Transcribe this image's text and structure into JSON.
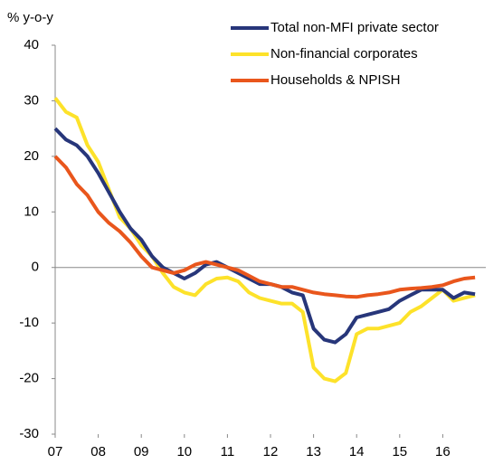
{
  "chart_data": {
    "type": "line",
    "y_label": "% y-o-y",
    "x": [
      2007,
      2007.25,
      2007.5,
      2007.75,
      2008,
      2008.25,
      2008.5,
      2008.75,
      2009,
      2009.25,
      2009.5,
      2009.75,
      2010,
      2010.25,
      2010.5,
      2010.75,
      2011,
      2011.25,
      2011.5,
      2011.75,
      2012,
      2012.25,
      2012.5,
      2012.75,
      2013,
      2013.25,
      2013.5,
      2013.75,
      2014,
      2014.25,
      2014.5,
      2014.75,
      2015,
      2015.25,
      2015.5,
      2015.75,
      2016,
      2016.25,
      2016.5,
      2016.75
    ],
    "series": [
      {
        "name": "Total non-MFI private sector",
        "color": "#27367a",
        "values": [
          25,
          23,
          22,
          20,
          17,
          13.5,
          10,
          7,
          5,
          2,
          0,
          -1,
          -2,
          -1,
          0.5,
          1,
          0,
          -1,
          -2,
          -3,
          -3,
          -3.5,
          -4.5,
          -5,
          -11,
          -13,
          -13.5,
          -12,
          -9,
          -8.5,
          -8,
          -7.5,
          -6,
          -5,
          -4,
          -4,
          -4,
          -5.5,
          -4.5,
          -4.8
        ]
      },
      {
        "name": "Non-financial corporates",
        "color": "#fde22a",
        "values": [
          30.5,
          28,
          27,
          22,
          19,
          14,
          9,
          7,
          4,
          2,
          -1,
          -3.5,
          -4.5,
          -5,
          -3,
          -2,
          -1.8,
          -2.5,
          -4.5,
          -5.5,
          -6,
          -6.5,
          -6.5,
          -8,
          -18,
          -20,
          -20.5,
          -19,
          -12,
          -11,
          -11,
          -10.5,
          -10,
          -8,
          -7,
          -5.5,
          -4,
          -6,
          -5.5,
          -5
        ]
      },
      {
        "name": "Households & NPISH",
        "color": "#e9561c",
        "values": [
          20,
          18,
          15,
          13,
          10,
          8,
          6.5,
          4.5,
          2,
          0,
          -0.5,
          -1,
          -0.5,
          0.5,
          1,
          0.5,
          0,
          -0.5,
          -1.5,
          -2.5,
          -3,
          -3.5,
          -3.5,
          -4,
          -4.5,
          -4.8,
          -5,
          -5.2,
          -5.3,
          -5,
          -4.8,
          -4.5,
          -4,
          -3.8,
          -3.7,
          -3.5,
          -3.2,
          -2.5,
          -2,
          -1.8
        ]
      }
    ],
    "xlim": [
      2007,
      2017
    ],
    "xticks": [
      {
        "value": 2007,
        "label": "07"
      },
      {
        "value": 2008,
        "label": "08"
      },
      {
        "value": 2009,
        "label": "09"
      },
      {
        "value": 2010,
        "label": "10"
      },
      {
        "value": 2011,
        "label": "11"
      },
      {
        "value": 2012,
        "label": "12"
      },
      {
        "value": 2013,
        "label": "13"
      },
      {
        "value": 2014,
        "label": "14"
      },
      {
        "value": 2015,
        "label": "15"
      },
      {
        "value": 2016,
        "label": "16"
      }
    ],
    "ylim": [
      -30,
      40
    ],
    "yticks": [
      -30,
      -20,
      -10,
      0,
      10,
      20,
      30,
      40
    ],
    "grid": false,
    "legend": "top-right"
  }
}
